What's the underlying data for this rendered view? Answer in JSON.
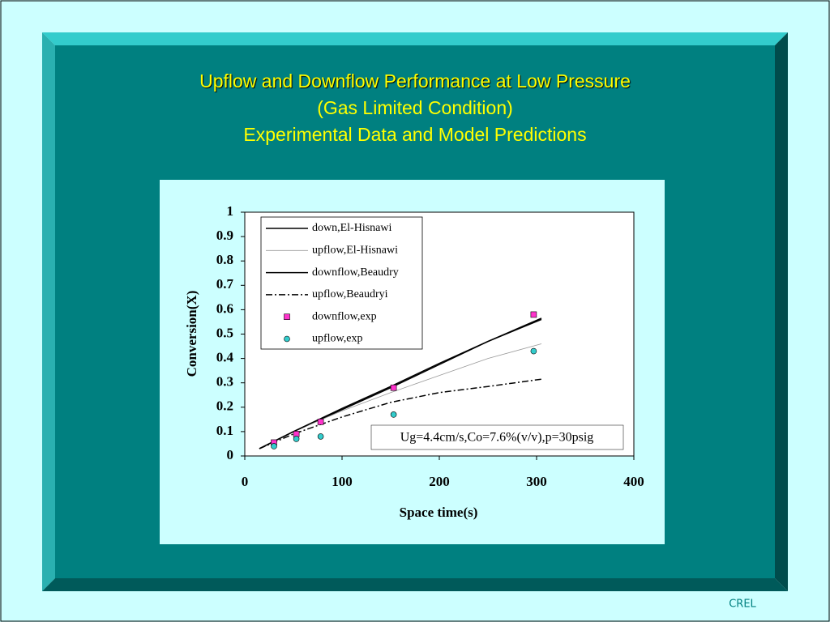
{
  "chart_data": {
    "type": "line",
    "title": [
      "Upflow and Downflow Performance at Low Pressure",
      "(Gas Limited Condition)",
      "Experimental Data and Model Predictions"
    ],
    "xlabel": "Space time(s)",
    "ylabel": "Conversion(X)",
    "xlim": [
      0,
      400
    ],
    "xticks": [
      0,
      100,
      200,
      300,
      400
    ],
    "ylim": [
      0,
      1
    ],
    "yticks": [
      0,
      0.1,
      0.2,
      0.3,
      0.4,
      0.5,
      0.6,
      0.7,
      0.8,
      0.9,
      1
    ],
    "legend": "upper left",
    "annotation": "Ug=4.4cm/s,Co=7.6%(v/v),p=30psig",
    "series": [
      {
        "name": "down,El-Hisnawi",
        "kind": "line",
        "dash": "solid",
        "color": "#000000",
        "x": [
          15,
          50,
          100,
          150,
          200,
          250,
          305
        ],
        "values": [
          0.03,
          0.1,
          0.19,
          0.28,
          0.375,
          0.47,
          0.565
        ]
      },
      {
        "name": "upflow,El-Hisnawi",
        "kind": "line",
        "dash": "solid",
        "color": "#999999",
        "x": [
          15,
          50,
          100,
          150,
          200,
          250,
          305
        ],
        "values": [
          0.03,
          0.1,
          0.185,
          0.26,
          0.33,
          0.4,
          0.46
        ]
      },
      {
        "name": "downflow,Beaudry",
        "kind": "line",
        "dash": "solid",
        "color": "#000000",
        "x": [
          15,
          50,
          100,
          150,
          200,
          250,
          305
        ],
        "values": [
          0.03,
          0.1,
          0.195,
          0.285,
          0.38,
          0.47,
          0.56
        ]
      },
      {
        "name": "upflow,Beaudryi",
        "kind": "line",
        "dash": "dashdot",
        "color": "#000000",
        "x": [
          15,
          50,
          100,
          150,
          200,
          250,
          305
        ],
        "values": [
          0.03,
          0.09,
          0.16,
          0.22,
          0.26,
          0.285,
          0.315
        ]
      },
      {
        "name": "downflow,exp",
        "kind": "scatter",
        "marker": "square",
        "color": "#ff33cc",
        "x": [
          30,
          53,
          78,
          153,
          297
        ],
        "values": [
          0.055,
          0.09,
          0.14,
          0.28,
          0.58
        ]
      },
      {
        "name": "upflow,exp",
        "kind": "scatter",
        "marker": "circle",
        "color": "#33cccc",
        "x": [
          30,
          53,
          78,
          153,
          297
        ],
        "values": [
          0.04,
          0.07,
          0.08,
          0.17,
          0.43
        ]
      }
    ]
  },
  "footer": "CREL"
}
